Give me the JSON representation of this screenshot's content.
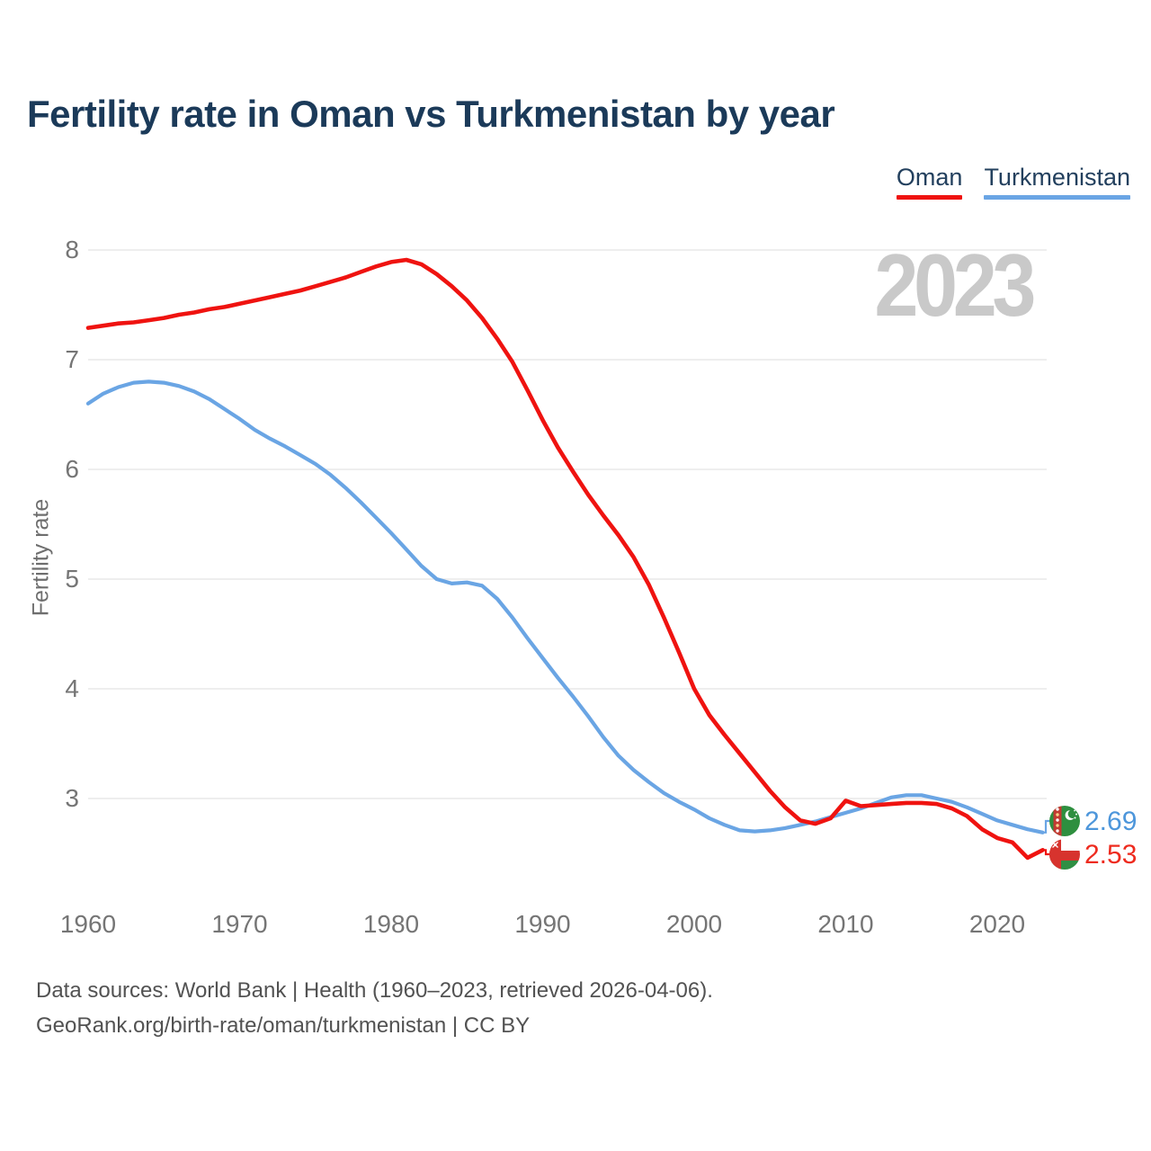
{
  "title": "Fertility rate in Oman vs Turkmenistan by year",
  "legend": {
    "items": [
      {
        "label": "Oman",
        "color": "#ef1310"
      },
      {
        "label": "Turkmenistan",
        "color": "#6aa5e4"
      }
    ]
  },
  "watermark": "2023",
  "y_axis": {
    "label": "Fertility rate",
    "ticks": [
      8,
      7,
      6,
      5,
      4,
      3
    ]
  },
  "x_axis": {
    "ticks": [
      1960,
      1970,
      1980,
      1990,
      2000,
      2010,
      2020
    ]
  },
  "end_labels": [
    {
      "country": "Turkmenistan",
      "value": "2.69",
      "color": "#4d96db",
      "icon": "turkmenistan-flag-icon"
    },
    {
      "country": "Oman",
      "value": "2.53",
      "color": "#ee2b1f",
      "icon": "oman-flag-icon"
    }
  ],
  "footer": {
    "line1": "Data sources: World Bank | Health (1960–2023, retrieved 2026-04-06).",
    "line2": "GeoRank.org/birth-rate/oman/turkmenistan | CC BY"
  },
  "chart_data": {
    "type": "line",
    "title": "Fertility rate in Oman vs Turkmenistan by year",
    "ylabel": "Fertility rate",
    "ylim": [
      2.3,
      8.2
    ],
    "x_range": [
      1960,
      2023
    ],
    "grid": "horizontal",
    "legend_position": "top-right",
    "years": [
      1960,
      1961,
      1962,
      1963,
      1964,
      1965,
      1966,
      1967,
      1968,
      1969,
      1970,
      1971,
      1972,
      1973,
      1974,
      1975,
      1976,
      1977,
      1978,
      1979,
      1980,
      1981,
      1982,
      1983,
      1984,
      1985,
      1986,
      1987,
      1988,
      1989,
      1990,
      1991,
      1992,
      1993,
      1994,
      1995,
      1996,
      1997,
      1998,
      1999,
      2000,
      2001,
      2002,
      2003,
      2004,
      2005,
      2006,
      2007,
      2008,
      2009,
      2010,
      2011,
      2012,
      2013,
      2014,
      2015,
      2016,
      2017,
      2018,
      2019,
      2020,
      2021,
      2022,
      2023
    ],
    "series": [
      {
        "name": "Turkmenistan",
        "color": "#6aa5e4",
        "end_value": 2.69,
        "values": [
          6.6,
          6.69,
          6.75,
          6.79,
          6.8,
          6.79,
          6.76,
          6.71,
          6.64,
          6.55,
          6.46,
          6.36,
          6.28,
          6.21,
          6.13,
          6.05,
          5.95,
          5.83,
          5.7,
          5.56,
          5.42,
          5.27,
          5.12,
          5.0,
          4.96,
          4.97,
          4.94,
          4.82,
          4.65,
          4.46,
          4.28,
          4.1,
          3.93,
          3.75,
          3.56,
          3.39,
          3.26,
          3.15,
          3.05,
          2.97,
          2.9,
          2.82,
          2.76,
          2.71,
          2.7,
          2.71,
          2.73,
          2.76,
          2.79,
          2.83,
          2.87,
          2.91,
          2.96,
          3.01,
          3.03,
          3.03,
          3.0,
          2.97,
          2.92,
          2.86,
          2.8,
          2.76,
          2.72,
          2.69
        ]
      },
      {
        "name": "Oman",
        "color": "#ef1310",
        "end_value": 2.53,
        "values": [
          7.29,
          7.31,
          7.33,
          7.34,
          7.36,
          7.38,
          7.41,
          7.43,
          7.46,
          7.48,
          7.51,
          7.54,
          7.57,
          7.6,
          7.63,
          7.67,
          7.71,
          7.75,
          7.8,
          7.85,
          7.89,
          7.91,
          7.87,
          7.78,
          7.67,
          7.54,
          7.38,
          7.19,
          6.98,
          6.72,
          6.45,
          6.2,
          5.98,
          5.77,
          5.58,
          5.4,
          5.2,
          4.95,
          4.65,
          4.33,
          4.0,
          3.76,
          3.58,
          3.41,
          3.24,
          3.07,
          2.92,
          2.8,
          2.77,
          2.82,
          2.98,
          2.93,
          2.94,
          2.95,
          2.96,
          2.96,
          2.95,
          2.91,
          2.84,
          2.72,
          2.64,
          2.6,
          2.46,
          2.53
        ]
      }
    ]
  }
}
